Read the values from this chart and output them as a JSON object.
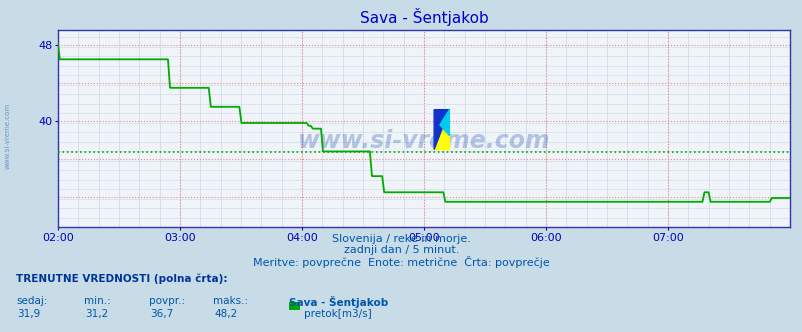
{
  "title": "Sava - Šentjakob",
  "title_color": "#0000cc",
  "title_fontsize": 11,
  "outer_bg_color": "#c8dce8",
  "plot_bg_color": "#f0f4f8",
  "line_color": "#00aa00",
  "avg_line_color": "#00aa00",
  "avg_line_value": 36.7,
  "ylim": [
    28.8,
    49.6
  ],
  "ytick_positions": [
    40,
    48
  ],
  "ytick_labels": [
    "40",
    "48"
  ],
  "grid_red_color": "#ee8888",
  "grid_minor_color": "#c8d8e8",
  "axis_color": "#3333aa",
  "tick_color": "#0000bb",
  "xtick_labels": [
    "02:00",
    "03:00",
    "04:00",
    "05:00",
    "06:00",
    "07:00"
  ],
  "xtick_positions": [
    0,
    60,
    120,
    180,
    240,
    300
  ],
  "total_minutes": 360,
  "watermark_text": "www.si-vreme.com",
  "watermark_color": "#1144aa",
  "watermark_alpha": 0.28,
  "left_wm_text": "www.si-vreme.com",
  "subtitle_lines": [
    "Slovenija / reke in morje.",
    "zadnji dan / 5 minut.",
    "Meritve: povprečne  Enote: metrične  Črta: povprečje"
  ],
  "subtitle_color": "#0055aa",
  "subtitle_fontsize": 8,
  "bottom_label1": "TRENUTNE VREDNOSTI (polna črta):",
  "bottom_col_headers": [
    "sedaj:",
    "min.:",
    "povpr.:",
    "maks.:"
  ],
  "bottom_col_values": [
    "31,9",
    "31,2",
    "36,7",
    "48,2"
  ],
  "bottom_station": "Sava - Šentjakob",
  "bottom_legend": "pretok[m3/s]",
  "bottom_text_color": "#0055aa",
  "bottom_label1_color": "#003399",
  "flow_data": [
    48.2,
    46.5,
    46.5,
    46.5,
    46.5,
    46.5,
    46.5,
    46.5,
    46.5,
    46.5,
    46.5,
    46.5,
    46.5,
    46.5,
    46.5,
    46.5,
    46.5,
    46.5,
    46.5,
    46.5,
    46.5,
    46.5,
    46.5,
    46.5,
    46.5,
    46.5,
    46.5,
    46.5,
    46.5,
    46.5,
    46.5,
    46.5,
    46.5,
    46.5,
    46.5,
    46.5,
    46.5,
    46.5,
    46.5,
    46.5,
    46.5,
    46.5,
    46.5,
    46.5,
    46.5,
    46.5,
    46.5,
    46.5,
    46.5,
    46.5,
    46.5,
    46.5,
    46.5,
    46.5,
    46.5,
    43.5,
    43.5,
    43.5,
    43.5,
    43.5,
    43.5,
    43.5,
    43.5,
    43.5,
    43.5,
    43.5,
    43.5,
    43.5,
    43.5,
    43.5,
    43.5,
    43.5,
    43.5,
    43.5,
    43.5,
    41.5,
    41.5,
    41.5,
    41.5,
    41.5,
    41.5,
    41.5,
    41.5,
    41.5,
    41.5,
    41.5,
    41.5,
    41.5,
    41.5,
    41.5,
    39.8,
    39.8,
    39.8,
    39.8,
    39.8,
    39.8,
    39.8,
    39.8,
    39.8,
    39.8,
    39.8,
    39.8,
    39.8,
    39.8,
    39.8,
    39.8,
    39.8,
    39.8,
    39.8,
    39.8,
    39.8,
    39.8,
    39.8,
    39.8,
    39.8,
    39.8,
    39.8,
    39.8,
    39.8,
    39.8,
    39.8,
    39.8,
    39.8,
    39.5,
    39.5,
    39.2,
    39.2,
    39.2,
    39.2,
    39.2,
    36.8,
    36.8,
    36.8,
    36.8,
    36.8,
    36.8,
    36.8,
    36.8,
    36.8,
    36.8,
    36.8,
    36.8,
    36.8,
    36.8,
    36.8,
    36.8,
    36.8,
    36.8,
    36.8,
    36.8,
    36.8,
    36.8,
    36.8,
    36.8,
    34.2,
    34.2,
    34.2,
    34.2,
    34.2,
    34.2,
    32.5,
    32.5,
    32.5,
    32.5,
    32.5,
    32.5,
    32.5,
    32.5,
    32.5,
    32.5,
    32.5,
    32.5,
    32.5,
    32.5,
    32.5,
    32.5,
    32.5,
    32.5,
    32.5,
    32.5,
    32.5,
    32.5,
    32.5,
    32.5,
    32.5,
    32.5,
    32.5,
    32.5,
    32.5,
    32.5,
    31.5,
    31.5,
    31.5,
    31.5,
    31.5,
    31.5,
    31.5,
    31.5,
    31.5,
    31.5,
    31.5,
    31.5,
    31.5,
    31.5,
    31.5,
    31.5,
    31.5,
    31.5,
    31.5,
    31.5,
    31.5,
    31.5,
    31.5,
    31.5,
    31.5,
    31.5,
    31.5,
    31.5,
    31.5,
    31.5,
    31.5,
    31.5,
    31.5,
    31.5,
    31.5,
    31.5,
    31.5,
    31.5,
    31.5,
    31.5,
    31.5,
    31.5,
    31.5,
    31.5,
    31.5,
    31.5,
    31.5,
    31.5,
    31.5,
    31.5,
    31.5,
    31.5,
    31.5,
    31.5,
    31.5,
    31.5,
    31.5,
    31.5,
    31.5,
    31.5,
    31.5,
    31.5,
    31.5,
    31.5,
    31.5,
    31.5,
    31.5,
    31.5,
    31.5,
    31.5,
    31.5,
    31.5,
    31.5,
    31.5,
    31.5,
    31.5,
    31.5,
    31.5,
    31.5,
    31.5,
    31.5,
    31.5,
    31.5,
    31.5,
    31.5,
    31.5,
    31.5,
    31.5,
    31.5,
    31.5,
    31.5,
    31.5,
    31.5,
    31.5,
    31.5,
    31.5,
    31.5,
    31.5,
    31.5,
    31.5,
    31.5,
    31.5,
    31.5,
    31.5,
    31.5,
    31.5,
    31.5,
    31.5,
    31.5,
    31.5,
    31.5,
    31.5,
    31.5,
    31.5,
    31.5,
    31.5,
    31.5,
    31.5,
    31.5,
    31.5,
    31.5,
    31.5,
    31.5,
    31.5,
    31.5,
    31.5,
    31.5,
    32.5,
    32.5,
    32.5,
    31.5,
    31.5,
    31.5,
    31.5,
    31.5,
    31.5,
    31.5,
    31.5,
    31.5,
    31.5,
    31.5,
    31.5,
    31.5,
    31.5,
    31.5,
    31.5,
    31.5,
    31.5,
    31.5,
    31.5,
    31.5,
    31.5,
    31.5,
    31.5,
    31.5,
    31.5,
    31.5,
    31.5,
    31.5,
    31.5,
    31.9,
    31.9,
    31.9,
    31.9,
    31.9,
    31.9,
    31.9,
    31.9,
    31.9,
    31.9
  ]
}
